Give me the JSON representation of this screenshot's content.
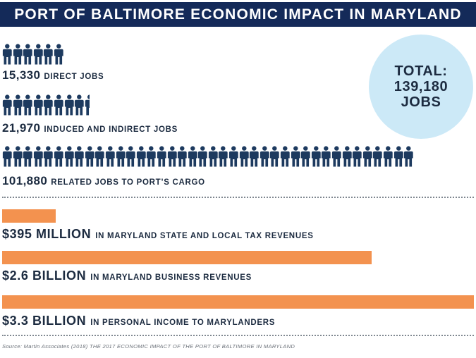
{
  "title": "PORT OF BALTIMORE ECONOMIC IMPACT IN MARYLAND",
  "total": {
    "line1": "TOTAL:",
    "line2": "139,180",
    "line3": "JOBS"
  },
  "jobs": [
    {
      "number": "15,330",
      "label": "DIRECT JOBS",
      "icon_count": 6,
      "icon": "person-icon"
    },
    {
      "number": "21,970",
      "label": "INDUCED AND INDIRECT JOBS",
      "icon_count": 8.5,
      "icon": "person-icon"
    },
    {
      "number": "101,880",
      "label": "RELATED JOBS TO PORT’S CARGO",
      "icon_count": 40,
      "icon": "person-icon"
    }
  ],
  "revenues": [
    {
      "amount": "$395 MILLION",
      "label": "IN MARYLAND STATE AND LOCAL TAX REVENUES",
      "fraction": 0.114
    },
    {
      "amount": "$2.6 BILLION",
      "label": "IN MARYLAND BUSINESS REVENUES",
      "fraction": 0.784
    },
    {
      "amount": "$3.3 BILLION",
      "label": "IN PERSONAL INCOME TO MARYLANDERS",
      "fraction": 1.0
    }
  ],
  "colors": {
    "header": "#142a59",
    "icons": "#1d3a5f",
    "bars": "#f3924f",
    "circle": "#cce9f7",
    "text": "#1c2b40"
  },
  "source": "Source: Martin Associates (2018) THE 2017 ECONOMIC IMPACT OF THE PORT OF BALTIMORE IN MARYLAND"
}
